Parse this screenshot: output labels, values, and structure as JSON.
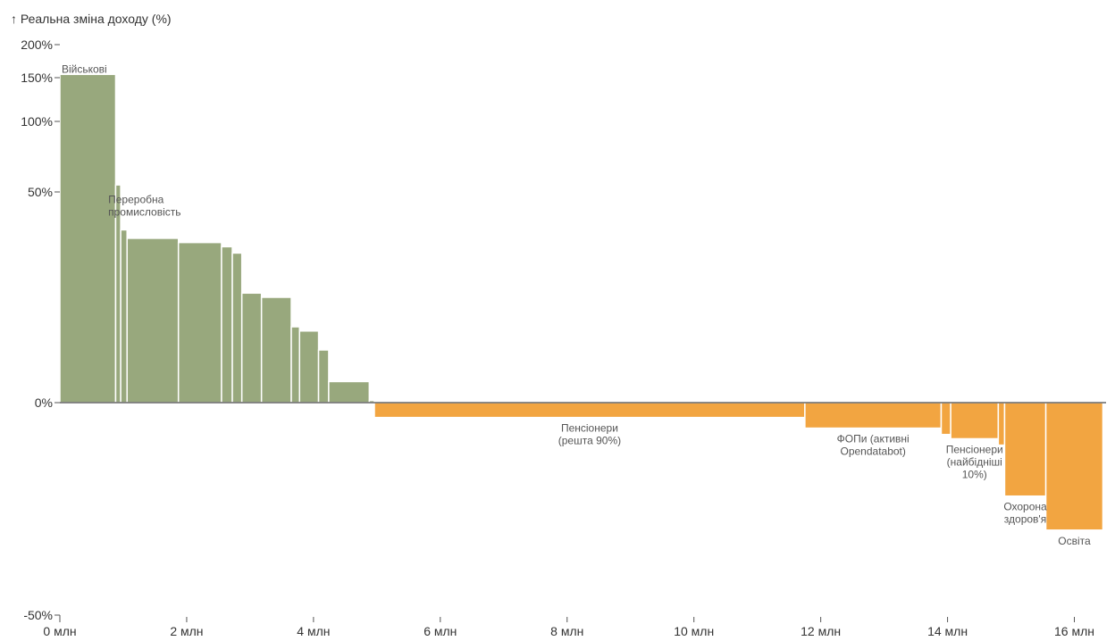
{
  "chart_data": {
    "type": "bar",
    "ylabel": "↑ Реальна зміна доходу (%)",
    "xlim": [
      0,
      16.5
    ],
    "ylim": [
      -50,
      200
    ],
    "x_ticks": [
      0,
      2,
      4,
      6,
      8,
      10,
      12,
      14,
      16
    ],
    "x_tick_labels": [
      "0 млн",
      "2 млн",
      "4 млн",
      "6 млн",
      "8 млн",
      "10 млн",
      "12 млн",
      "14 млн",
      "16 млн"
    ],
    "y_ticks": [
      200,
      150,
      100,
      50,
      0,
      -50
    ],
    "y_tick_labels": [
      "200%",
      "150%",
      "100%",
      "50%",
      "0%",
      "-50%"
    ],
    "colors": {
      "positive": "#98a87d",
      "negative": "#f2a541"
    },
    "grid": false,
    "bars": [
      {
        "x0": 0.0,
        "x1": 0.88,
        "value": 155,
        "label": "Військові"
      },
      {
        "x0": 0.88,
        "x1": 0.96,
        "value": 55,
        "label": ""
      },
      {
        "x0": 0.96,
        "x1": 1.06,
        "value": 41,
        "label": "Переробна промисловість"
      },
      {
        "x0": 1.06,
        "x1": 1.87,
        "value": 39,
        "label": ""
      },
      {
        "x0": 1.87,
        "x1": 2.55,
        "value": 38,
        "label": ""
      },
      {
        "x0": 2.55,
        "x1": 2.72,
        "value": 37,
        "label": ""
      },
      {
        "x0": 2.72,
        "x1": 2.87,
        "value": 35.5,
        "label": ""
      },
      {
        "x0": 2.87,
        "x1": 3.18,
        "value": 26,
        "label": ""
      },
      {
        "x0": 3.18,
        "x1": 3.65,
        "value": 25,
        "label": ""
      },
      {
        "x0": 3.65,
        "x1": 3.78,
        "value": 18,
        "label": ""
      },
      {
        "x0": 3.78,
        "x1": 4.08,
        "value": 17,
        "label": ""
      },
      {
        "x0": 4.08,
        "x1": 4.24,
        "value": 12.5,
        "label": ""
      },
      {
        "x0": 4.24,
        "x1": 4.88,
        "value": 5,
        "label": ""
      },
      {
        "x0": 4.88,
        "x1": 4.96,
        "value": 0.5,
        "label": ""
      },
      {
        "x0": 4.96,
        "x1": 11.75,
        "value": -3.5,
        "label": "Пенсіонери (решта 90%)"
      },
      {
        "x0": 11.75,
        "x1": 13.9,
        "value": -6,
        "label": "ФОПи (активні Opendatabot)"
      },
      {
        "x0": 13.9,
        "x1": 14.05,
        "value": -7.5,
        "label": ""
      },
      {
        "x0": 14.05,
        "x1": 14.8,
        "value": -8.5,
        "label": "Пенсіонери (найбідніші 10%)"
      },
      {
        "x0": 14.8,
        "x1": 14.9,
        "value": -10,
        "label": ""
      },
      {
        "x0": 14.9,
        "x1": 15.55,
        "value": -22,
        "label": "Охорона здоров'я"
      },
      {
        "x0": 15.55,
        "x1": 16.45,
        "value": -30,
        "label": "Освіта"
      }
    ]
  }
}
